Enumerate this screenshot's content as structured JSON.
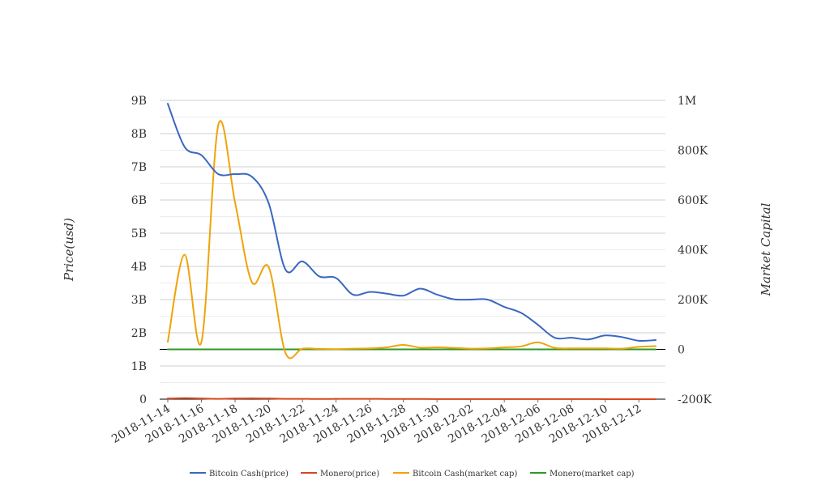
{
  "chart_data": {
    "type": "line",
    "title": "",
    "x_dates": [
      "2018-11-14",
      "2018-11-15",
      "2018-11-16",
      "2018-11-17",
      "2018-11-18",
      "2018-11-19",
      "2018-11-20",
      "2018-11-21",
      "2018-11-22",
      "2018-11-23",
      "2018-11-24",
      "2018-11-25",
      "2018-11-26",
      "2018-11-27",
      "2018-11-28",
      "2018-11-29",
      "2018-11-30",
      "2018-12-01",
      "2018-12-02",
      "2018-12-03",
      "2018-12-04",
      "2018-12-05",
      "2018-12-06",
      "2018-12-07",
      "2018-12-08",
      "2018-12-09",
      "2018-12-10",
      "2018-12-11",
      "2018-12-12",
      "2018-12-13"
    ],
    "x_tick_labels": [
      "2018-11-14",
      "2018-11-16",
      "2018-11-18",
      "2018-11-20",
      "2018-11-22",
      "2018-11-24",
      "2018-11-26",
      "2018-11-28",
      "2018-11-30",
      "2018-12-02",
      "2018-12-04",
      "2018-12-06",
      "2018-12-08",
      "2018-12-10",
      "2018-12-12"
    ],
    "y_left": {
      "label": "Price(usd)",
      "range": [
        0,
        9000000000
      ],
      "ticks": [
        0,
        1000000000,
        2000000000,
        3000000000,
        4000000000,
        5000000000,
        6000000000,
        7000000000,
        8000000000,
        9000000000
      ],
      "tick_labels": [
        "0",
        "1B",
        "2B",
        "3B",
        "4B",
        "5B",
        "6B",
        "7B",
        "8B",
        "9B"
      ]
    },
    "y_right": {
      "label": "Market Capital",
      "range": [
        -200000,
        1000000
      ],
      "ticks": [
        -200000,
        0,
        200000,
        400000,
        600000,
        800000,
        1000000
      ],
      "tick_labels": [
        "-200K",
        "0",
        "200K",
        "400K",
        "600K",
        "800K",
        "1M"
      ]
    },
    "grid": true,
    "legend_position": "bottom",
    "series": [
      {
        "name": "Bitcoin Cash(price)",
        "axis": "left",
        "color": "#3a66c2",
        "values": [
          8900000000,
          7600000000,
          7350000000,
          6780000000,
          6780000000,
          6700000000,
          5900000000,
          3900000000,
          4150000000,
          3700000000,
          3650000000,
          3150000000,
          3230000000,
          3180000000,
          3120000000,
          3330000000,
          3150000000,
          3010000000,
          3000000000,
          3000000000,
          2780000000,
          2600000000,
          2240000000,
          1850000000,
          1850000000,
          1800000000,
          1920000000,
          1870000000,
          1760000000,
          1780000000
        ]
      },
      {
        "name": "Monero(price)",
        "axis": "left",
        "color": "#d9461a",
        "values": [
          20000000,
          30000000,
          20000000,
          10000000,
          20000000,
          25000000,
          20000000,
          10000000,
          10000000,
          5000000,
          8000000,
          10000000,
          10000000,
          6000000,
          5000000,
          5000000,
          4000000,
          4000000,
          4000000,
          3000000,
          3000000,
          3000000,
          2000000,
          2000000,
          2000000,
          2000000,
          1000000,
          1000000,
          1000000,
          1000000
        ]
      },
      {
        "name": "Bitcoin Cash(market cap)",
        "axis": "right",
        "color": "#f0a30a",
        "values": [
          30000,
          380000,
          30000,
          900000,
          590000,
          270000,
          330000,
          -15000,
          3000,
          2000,
          1000,
          3000,
          4000,
          8000,
          18000,
          7000,
          8000,
          6000,
          3000,
          4000,
          8000,
          12000,
          28000,
          6000,
          4000,
          4000,
          4000,
          3000,
          10000,
          13000
        ]
      },
      {
        "name": "Monero(market cap)",
        "axis": "right",
        "color": "#2e9a26",
        "values": [
          0,
          0,
          0,
          0,
          0,
          0,
          0,
          0,
          0,
          0,
          0,
          0,
          0,
          0,
          0,
          0,
          0,
          0,
          0,
          0,
          0,
          0,
          0,
          0,
          0,
          0,
          0,
          0,
          0,
          0
        ]
      }
    ]
  }
}
